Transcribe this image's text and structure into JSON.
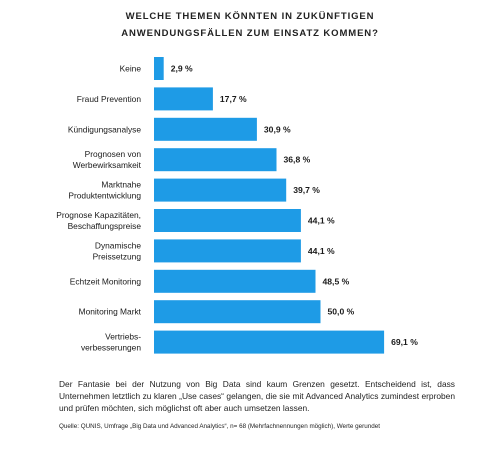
{
  "title_line1": "WELCHE THEMEN KÖNNTEN IN ZUKÜNFTIGEN",
  "title_line2": "ANWENDUNGSFÄLLEN ZUM EINSATZ KOMMEN?",
  "bar_color": "#1e9be6",
  "chart_data": {
    "type": "bar",
    "orientation": "horizontal",
    "categories": [
      [
        "Keine"
      ],
      [
        "Fraud Prevention"
      ],
      [
        "Kündigungsanalyse"
      ],
      [
        "Prognosen von",
        "Werbewirksamkeit"
      ],
      [
        "Marktnahe",
        "Produktentwicklung"
      ],
      [
        "Prognose Kapazitäten,",
        "Beschaffungspreise"
      ],
      [
        "Dynamische",
        "Preissetzung"
      ],
      [
        "Echtzeit Monitoring"
      ],
      [
        "Monitoring Markt"
      ],
      [
        "Vertriebs-",
        "verbesserungen"
      ]
    ],
    "values": [
      2.9,
      17.7,
      30.9,
      36.8,
      39.7,
      44.1,
      44.1,
      48.5,
      50.0,
      69.1
    ],
    "value_labels": [
      "2,9 %",
      "17,7 %",
      "30,9 %",
      "36,8 %",
      "39,7 %",
      "44,1 %",
      "44,1 %",
      "48,5 %",
      "50,0 %",
      "69,1 %"
    ],
    "grid": false
  },
  "description": "Der Fantasie bei der Nutzung von Big Data sind kaum Grenzen gesetzt. Entscheidend ist, dass Unternehmen letztlich zu klaren „Use cases“ gelangen, die sie mit Advanced Analytics zumindest erproben und prüfen möchten, sich möglichst oft aber auch umsetzen lassen.",
  "source": "Quelle: QUNIS, Umfrage „Big Data und Advanced Analytics“, n= 68 (Mehrfachnennungen möglich), Werte gerundet"
}
